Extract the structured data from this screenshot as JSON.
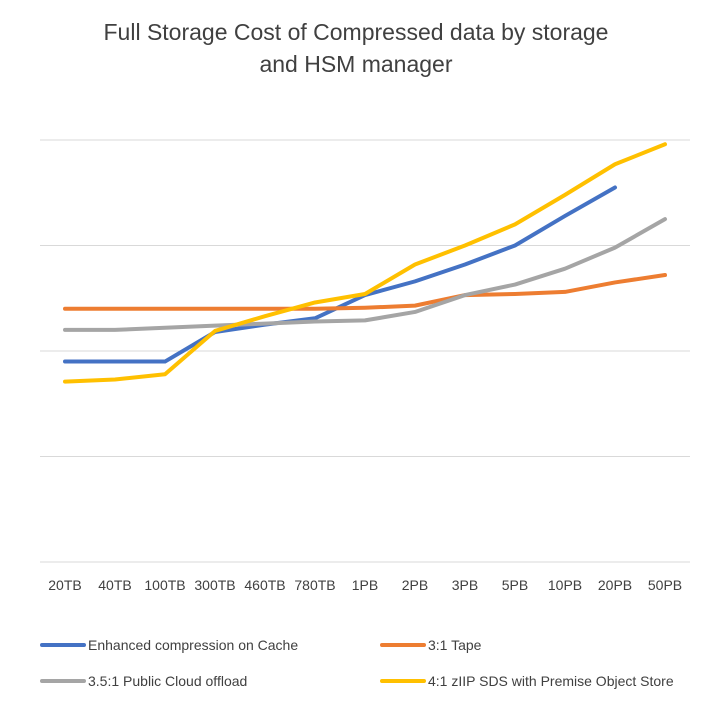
{
  "chart_data": {
    "type": "line",
    "title": "Full Storage Cost of Compressed data by storage and HSM manager",
    "title_lines": [
      "Full Storage Cost of Compressed data by storage",
      "and HSM manager"
    ],
    "xlabel": "",
    "ylabel": "",
    "categories": [
      "20TB",
      "40TB",
      "100TB",
      "300TB",
      "460TB",
      "780TB",
      "1PB",
      "2PB",
      "3PB",
      "5PB",
      "10PB",
      "20PB",
      "50PB"
    ],
    "ylim": [
      0,
      4
    ],
    "y_tick_labels_shown": false,
    "grid": true,
    "legend_position": "bottom",
    "series": [
      {
        "name": "Enhanced compression on Cache",
        "color": "#4472C4",
        "values": [
          1.9,
          1.9,
          1.9,
          2.18,
          2.25,
          2.31,
          2.53,
          2.66,
          2.82,
          3.0,
          3.28,
          3.55,
          null
        ]
      },
      {
        "name": "3:1 Tape",
        "color": "#ED7D31",
        "values": [
          2.4,
          2.4,
          2.4,
          2.4,
          2.4,
          2.4,
          2.41,
          2.43,
          2.53,
          2.54,
          2.56,
          2.65,
          2.72
        ]
      },
      {
        "name": "3.5:1 Public Cloud offload",
        "color": "#A5A5A5",
        "values": [
          2.2,
          2.2,
          2.22,
          2.24,
          2.26,
          2.28,
          2.29,
          2.37,
          2.53,
          2.63,
          2.78,
          2.98,
          3.25
        ]
      },
      {
        "name": "4:1 zIIP SDS with Premise Object Store",
        "color": "#FFC000",
        "values": [
          1.71,
          1.73,
          1.78,
          2.19,
          2.33,
          2.46,
          2.54,
          2.82,
          3.0,
          3.2,
          3.48,
          3.77,
          3.96
        ]
      }
    ]
  }
}
